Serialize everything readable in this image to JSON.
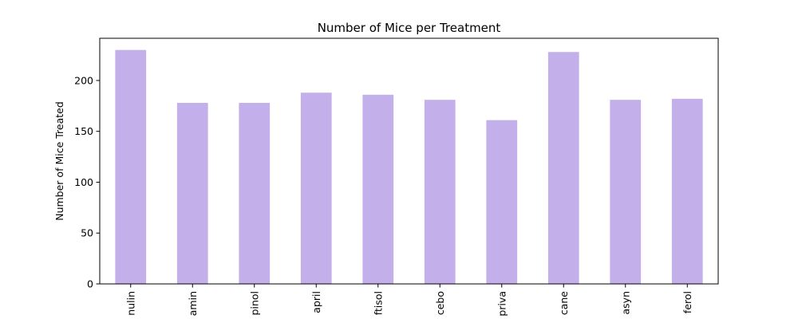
{
  "chart_data": {
    "type": "bar",
    "title": "Number of Mice per Treatment",
    "xlabel": "",
    "ylabel": "Number of Mice Treated",
    "categories": [
      "nulin",
      "amin",
      "pinol",
      "april",
      "ftisol",
      "cebo",
      "priva",
      "cane",
      "asyn",
      "ferol"
    ],
    "values": [
      230,
      178,
      178,
      188,
      186,
      181,
      161,
      228,
      181,
      182
    ],
    "ylim": [
      0,
      241.5
    ],
    "yticks": [
      0,
      50,
      100,
      150,
      200
    ],
    "bar_color": "#c3b0ea",
    "grid": false,
    "legend": "none"
  }
}
